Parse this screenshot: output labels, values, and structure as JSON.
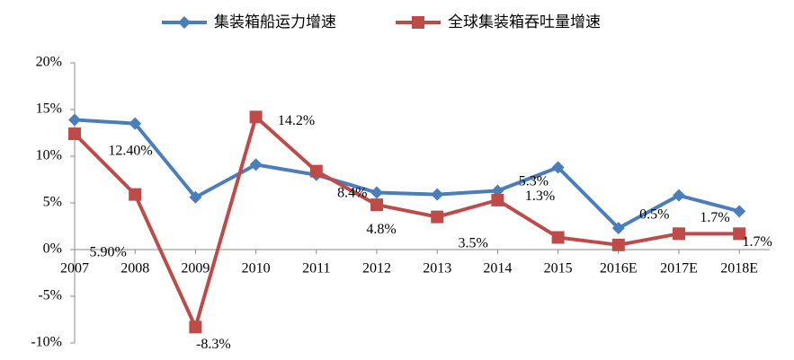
{
  "chart_data": {
    "type": "line",
    "categories": [
      "2007",
      "2008",
      "2009",
      "2010",
      "2011",
      "2012",
      "2013",
      "2014",
      "2015",
      "2016E",
      "2017E",
      "2018E"
    ],
    "series": [
      {
        "name": "集装箱船运力增速",
        "color": "#4a7ebb",
        "marker": "diamond",
        "values": [
          13.9,
          13.5,
          5.6,
          9.1,
          8.0,
          6.1,
          5.9,
          6.3,
          8.8,
          2.3,
          5.8,
          4.1
        ]
      },
      {
        "name": "全球集装箱吞吐量增速",
        "color": "#be4b48",
        "marker": "square",
        "values": [
          12.4,
          5.9,
          -8.3,
          14.2,
          8.4,
          4.8,
          3.5,
          5.3,
          1.3,
          0.5,
          1.7,
          1.7
        ],
        "value_labels": [
          "12.40%",
          "5.90%",
          "-8.3%",
          "14.2%",
          "8.4%",
          "4.8%",
          "3.5%",
          "5.3%",
          "1.3%",
          "0.5%",
          "1.7%",
          "1.7%"
        ]
      }
    ],
    "ylim": [
      -10,
      20
    ],
    "yticks": [
      {
        "value": -10,
        "label": "-10%"
      },
      {
        "value": -5,
        "label": "-5%"
      },
      {
        "value": 0,
        "label": "0%"
      },
      {
        "value": 5,
        "label": "5%"
      },
      {
        "value": 10,
        "label": "10%"
      },
      {
        "value": 15,
        "label": "15%"
      },
      {
        "value": 20,
        "label": "20%"
      }
    ],
    "legend": "top"
  }
}
